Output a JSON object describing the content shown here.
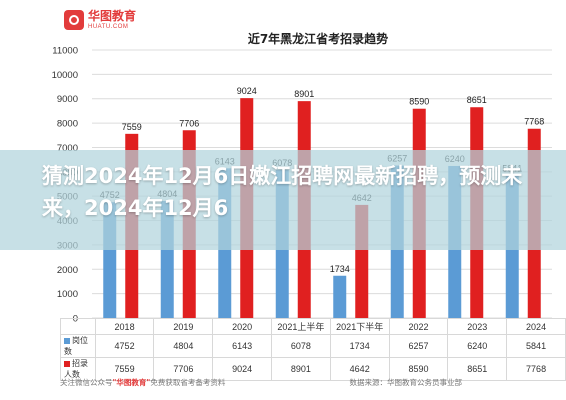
{
  "logo": {
    "name_cn": "华图教育",
    "name_en": "HUATU.COM"
  },
  "colors": {
    "gray_series": "#8c8c8c",
    "blue_series": "#5b9bd5",
    "red_series": "#e02020",
    "accent": "#e23b3b"
  },
  "headline": "猜测2024年12月6日嫩江招聘网最新招聘，预测未来，2024年12月6",
  "footer": {
    "left_prefix": "关注微信公众号",
    "left_brand": "\"华图教育\"",
    "left_suffix": "免费获取省考备考资料",
    "right": "数据来源：华图教育公务员事业部"
  },
  "chart_data": {
    "type": "bar",
    "title": "近7年黑龙江省考招录趋势",
    "categories": [
      "2018",
      "2019",
      "2020",
      "2021上半年",
      "2021下半年",
      "2022",
      "2023",
      "2024"
    ],
    "series": [
      {
        "name": "岗位数",
        "values": [
          4752,
          4804,
          6143,
          6078,
          1734,
          6257,
          6240,
          5841
        ]
      },
      {
        "name": "招录人数",
        "values": [
          7559,
          7706,
          9024,
          8901,
          4642,
          8590,
          8651,
          7768
        ]
      }
    ],
    "ylim": [
      0,
      11000
    ],
    "yticks": [
      0,
      1000,
      2000,
      3000,
      4000,
      5000,
      6000,
      7000,
      8000,
      9000,
      10000,
      11000
    ],
    "legend_position": "table-left",
    "grid": true
  }
}
